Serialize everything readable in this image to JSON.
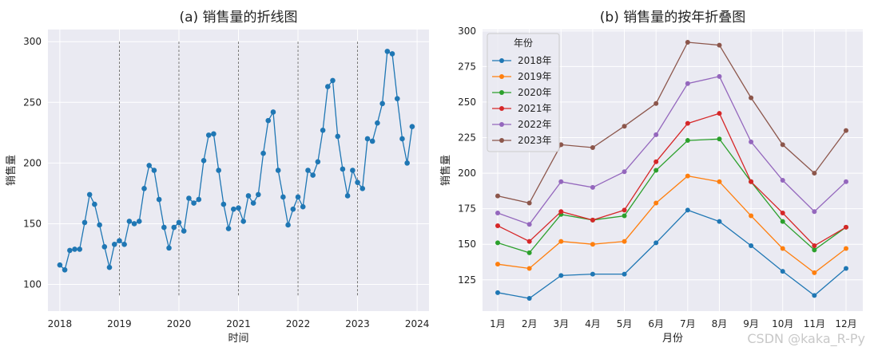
{
  "chart_data": [
    {
      "type": "line",
      "title": "(a) 销售量的折线图",
      "xlabel": "时间",
      "ylabel": "销售量",
      "xlim": [
        2017.8,
        2024.2
      ],
      "ylim": [
        78,
        310
      ],
      "xticks": [
        2018,
        2019,
        2020,
        2021,
        2022,
        2023,
        2024
      ],
      "xtick_labels": [
        "2018",
        "2019",
        "2020",
        "2021",
        "2022",
        "2023",
        "2024"
      ],
      "yticks": [
        100,
        150,
        200,
        250,
        300
      ],
      "ytick_labels": [
        "100",
        "150",
        "200",
        "250",
        "300"
      ],
      "vlines": [
        2019,
        2020,
        2021,
        2022,
        2023
      ],
      "grid": true,
      "color": "#1f77b4",
      "series": [
        {
          "x": [
            2018.0,
            2018.083,
            2018.167,
            2018.25,
            2018.333,
            2018.417,
            2018.5,
            2018.583,
            2018.667,
            2018.75,
            2018.833,
            2018.917,
            2019.0,
            2019.083,
            2019.167,
            2019.25,
            2019.333,
            2019.417,
            2019.5,
            2019.583,
            2019.667,
            2019.75,
            2019.833,
            2019.917,
            2020.0,
            2020.083,
            2020.167,
            2020.25,
            2020.333,
            2020.417,
            2020.5,
            2020.583,
            2020.667,
            2020.75,
            2020.833,
            2020.917,
            2021.0,
            2021.083,
            2021.167,
            2021.25,
            2021.333,
            2021.417,
            2021.5,
            2021.583,
            2021.667,
            2021.75,
            2021.833,
            2021.917,
            2022.0,
            2022.083,
            2022.167,
            2022.25,
            2022.333,
            2022.417,
            2022.5,
            2022.583,
            2022.667,
            2022.75,
            2022.833,
            2022.917,
            2023.0,
            2023.083,
            2023.167,
            2023.25,
            2023.333,
            2023.417,
            2023.5,
            2023.583,
            2023.667,
            2023.75,
            2023.833,
            2023.917
          ],
          "y": [
            116,
            112,
            128,
            129,
            129,
            151,
            174,
            166,
            149,
            131,
            114,
            133,
            136,
            133,
            152,
            150,
            152,
            179,
            198,
            194,
            170,
            147,
            130,
            147,
            151,
            144,
            171,
            167,
            170,
            202,
            223,
            224,
            194,
            166,
            146,
            162,
            163,
            152,
            173,
            167,
            174,
            208,
            235,
            242,
            194,
            172,
            149,
            162,
            172,
            164,
            194,
            190,
            201,
            227,
            263,
            268,
            222,
            195,
            173,
            194,
            184,
            179,
            220,
            218,
            233,
            249,
            292,
            290,
            253,
            220,
            200,
            230
          ]
        }
      ]
    },
    {
      "type": "line",
      "title": "(b) 销售量的按年折叠图",
      "xlabel": "月份",
      "ylabel": "销售量",
      "categories": [
        "1月",
        "2月",
        "3月",
        "4月",
        "5月",
        "6月",
        "7月",
        "8月",
        "9月",
        "10月",
        "11月",
        "12月"
      ],
      "ylim": [
        103,
        301
      ],
      "yticks": [
        125,
        150,
        175,
        200,
        225,
        250,
        275,
        300
      ],
      "ytick_labels": [
        "125",
        "150",
        "175",
        "200",
        "225",
        "250",
        "275",
        "300"
      ],
      "grid": true,
      "legend_title": "年份",
      "legend_position": "top-left",
      "series": [
        {
          "name": "2018年",
          "color": "#1f77b4",
          "values": [
            116,
            112,
            128,
            129,
            129,
            151,
            174,
            166,
            149,
            131,
            114,
            133
          ]
        },
        {
          "name": "2019年",
          "color": "#ff7f0e",
          "values": [
            136,
            133,
            152,
            150,
            152,
            179,
            198,
            194,
            170,
            147,
            130,
            147
          ]
        },
        {
          "name": "2020年",
          "color": "#2ca02c",
          "values": [
            151,
            144,
            171,
            167,
            170,
            202,
            223,
            224,
            194,
            166,
            146,
            162
          ]
        },
        {
          "name": "2021年",
          "color": "#d62728",
          "values": [
            163,
            152,
            173,
            167,
            174,
            208,
            235,
            242,
            194,
            172,
            149,
            162
          ]
        },
        {
          "name": "2022年",
          "color": "#9467bd",
          "values": [
            172,
            164,
            194,
            190,
            201,
            227,
            263,
            268,
            222,
            195,
            173,
            194
          ]
        },
        {
          "name": "2023年",
          "color": "#8c564b",
          "values": [
            184,
            179,
            220,
            218,
            233,
            249,
            292,
            290,
            253,
            220,
            200,
            230
          ]
        }
      ]
    }
  ],
  "watermark": "CSDN @kaka_R-Py"
}
